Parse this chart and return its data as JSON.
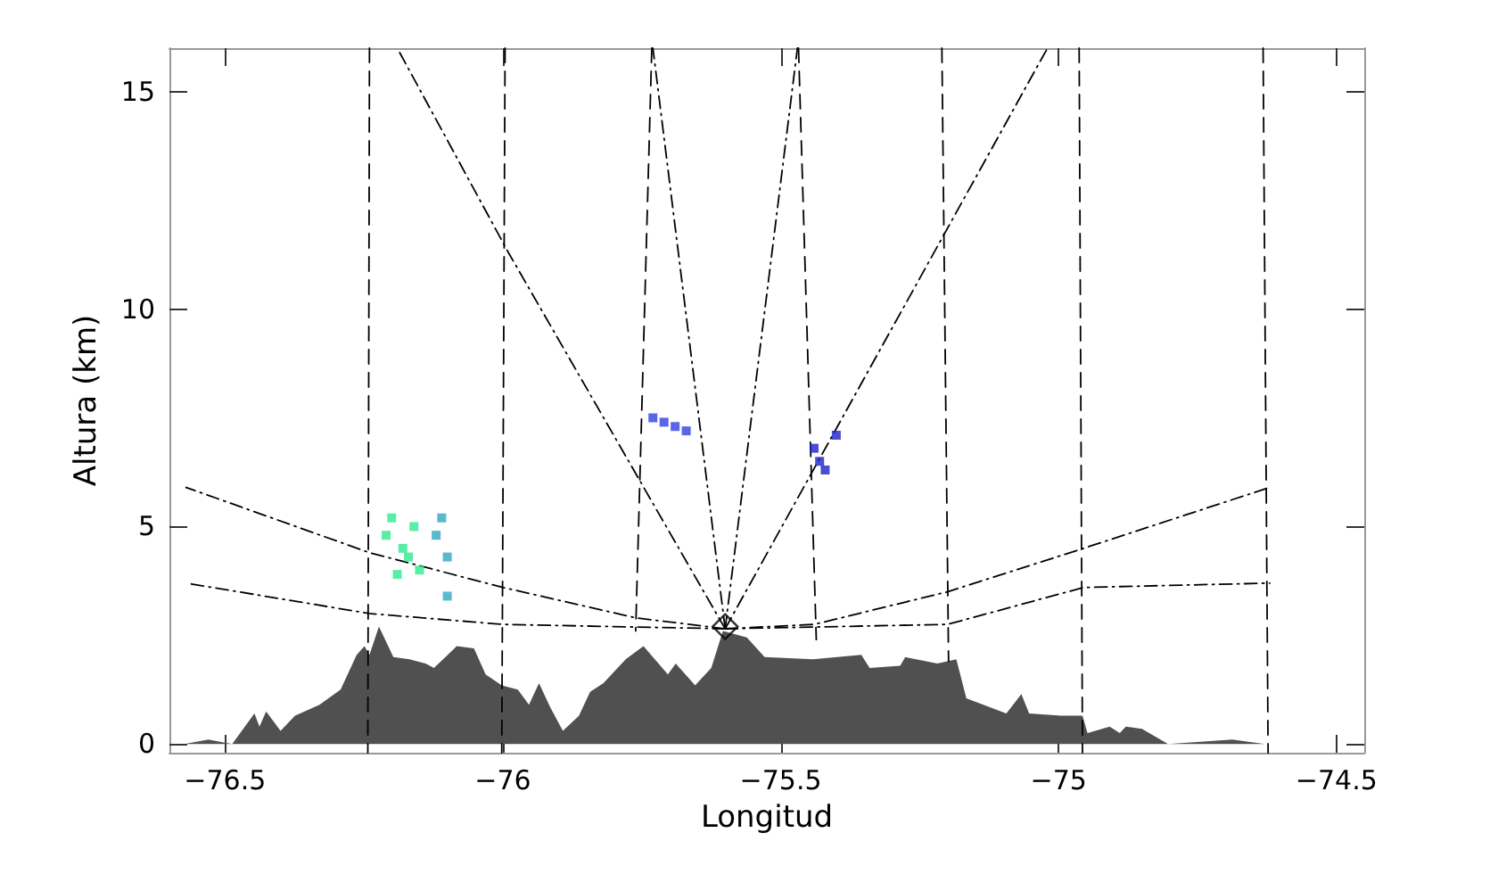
{
  "chart_data": {
    "type": "line",
    "xlabel": "Longitud",
    "ylabel": "Altura (km)",
    "xlim": [
      -76.6,
      -74.45
    ],
    "ylim": [
      -0.2,
      16
    ],
    "xticks": [
      -76.5,
      -76,
      -75.5,
      -75,
      -74.5
    ],
    "yticks": [
      0,
      5,
      10,
      15
    ],
    "grid": false,
    "series": [
      {
        "type": "area",
        "color": "#505050",
        "x": [
          -76.573,
          -76.53,
          -76.487,
          -76.447,
          -76.438,
          -76.426,
          -76.4,
          -76.374,
          -76.33,
          -76.292,
          -76.263,
          -76.249,
          -76.24,
          -76.223,
          -76.197,
          -76.168,
          -76.139,
          -76.124,
          -76.083,
          -76.052,
          -76.031,
          -76.002,
          -75.973,
          -75.953,
          -75.935,
          -75.915,
          -75.892,
          -75.863,
          -75.843,
          -75.819,
          -75.779,
          -75.747,
          -75.703,
          -75.689,
          -75.654,
          -75.625,
          -75.604,
          -75.561,
          -75.529,
          -75.442,
          -75.355,
          -75.34,
          -75.285,
          -75.276,
          -75.218,
          -75.184,
          -75.166,
          -75.094,
          -75.067,
          -75.053,
          -74.995,
          -74.957,
          -74.948,
          -74.908,
          -74.89,
          -74.879,
          -74.85,
          -74.803,
          -74.687,
          -74.629
        ],
        "values": [
          0,
          0.1,
          0,
          0.7,
          0.4,
          0.75,
          0.3,
          0.65,
          0.9,
          1.25,
          2.05,
          2.25,
          2.05,
          2.7,
          2,
          1.95,
          1.85,
          1.75,
          2.25,
          2.2,
          1.6,
          1.35,
          1.25,
          0.9,
          1.4,
          0.85,
          0.3,
          0.65,
          1.2,
          1.4,
          1.95,
          2.25,
          1.6,
          1.85,
          1.35,
          1.75,
          2.6,
          2.45,
          2,
          1.95,
          2.05,
          1.75,
          1.8,
          2,
          1.85,
          1.95,
          1.05,
          0.7,
          1.15,
          0.7,
          0.65,
          0.65,
          0.25,
          0.4,
          0.25,
          0.4,
          0.35,
          0,
          0.1,
          0
        ]
      },
      {
        "color": "#000000",
        "line_style": "dashed",
        "x": [
          -76.24,
          -76.243
        ],
        "values": [
          16,
          -0.2
        ]
      },
      {
        "color": "#000000",
        "line_style": "dashed",
        "x": [
          -75.996,
          -76.002
        ],
        "values": [
          16,
          -0.2
        ]
      },
      {
        "color": "#000000",
        "line_style": "dashed",
        "x": [
          -75.732,
          -75.761
        ],
        "values": [
          16,
          2.6
        ]
      },
      {
        "color": "#000000",
        "line_style": "dashed",
        "x": [
          -75.468,
          -75.436
        ],
        "values": [
          16,
          2.4
        ]
      },
      {
        "color": "#000000",
        "line_style": "dashed",
        "x": [
          -75.21,
          -75.198
        ],
        "values": [
          16,
          1.9
        ]
      },
      {
        "color": "#000000",
        "line_style": "dashed",
        "x": [
          -74.963,
          -74.957
        ],
        "values": [
          16,
          -0.2
        ]
      },
      {
        "color": "#000000",
        "line_style": "dashed",
        "x": [
          -74.632,
          -74.623
        ],
        "values": [
          16,
          -0.2
        ]
      },
      {
        "color": "#000000",
        "line_style": "dashdot",
        "x": [
          -75.6,
          -75.99,
          -76.19
        ],
        "values": [
          2.65,
          11.3,
          16
        ]
      },
      {
        "color": "#000000",
        "line_style": "dashdot",
        "x": [
          -75.6,
          -75.73
        ],
        "values": [
          2.65,
          16
        ]
      },
      {
        "color": "#000000",
        "line_style": "dashdot",
        "x": [
          -75.6,
          -75.47
        ],
        "values": [
          2.65,
          16
        ]
      },
      {
        "color": "#000000",
        "line_style": "dashdot",
        "x": [
          -75.6,
          -75.02
        ],
        "values": [
          2.65,
          16
        ]
      },
      {
        "color": "#000000",
        "line_style": "dashdot",
        "x": [
          -75.6,
          -75.76,
          -76,
          -76.24,
          -76.57
        ],
        "values": [
          2.65,
          2.9,
          3.6,
          4.4,
          5.9
        ]
      },
      {
        "color": "#000000",
        "line_style": "dashdot",
        "x": [
          -75.6,
          -76,
          -76.24,
          -76.57
        ],
        "values": [
          2.65,
          2.75,
          3,
          3.7
        ]
      },
      {
        "color": "#000000",
        "line_style": "dashdot",
        "x": [
          -75.6,
          -75.44,
          -75.2,
          -74.955,
          -74.62
        ],
        "values": [
          2.65,
          2.75,
          3.5,
          4.5,
          5.9
        ]
      },
      {
        "color": "#000000",
        "line_style": "dashdot",
        "x": [
          -75.6,
          -75.2,
          -74.955,
          -74.62
        ],
        "values": [
          2.65,
          2.75,
          3.6,
          3.7
        ]
      },
      {
        "type": "scatter",
        "marker": "square",
        "color": "#30e890",
        "x": [
          -76.21,
          -76.18,
          -76.16,
          -76.15,
          -76.19,
          -76.2,
          -76.17
        ],
        "values": [
          4.8,
          4.5,
          5,
          4,
          3.9,
          5.2,
          4.3
        ]
      },
      {
        "type": "scatter",
        "marker": "square",
        "color": "#30a8c0",
        "x": [
          -76.11,
          -76.1,
          -76.1,
          -76.12
        ],
        "values": [
          5.2,
          4.3,
          3.4,
          4.8
        ]
      },
      {
        "type": "scatter",
        "marker": "square",
        "color": "#3040e0",
        "x": [
          -75.73,
          -75.71,
          -75.69,
          -75.67
        ],
        "values": [
          7.5,
          7.4,
          7.3,
          7.2
        ]
      },
      {
        "type": "scatter",
        "marker": "square",
        "color": "#1c20c8",
        "x": [
          -75.44,
          -75.43,
          -75.42,
          -75.4
        ],
        "values": [
          6.8,
          6.5,
          6.3,
          7.1
        ]
      },
      {
        "type": "scatter",
        "marker": "diamond",
        "color": "#000000",
        "x": [
          -75.6
        ],
        "values": [
          2.7
        ]
      }
    ]
  }
}
